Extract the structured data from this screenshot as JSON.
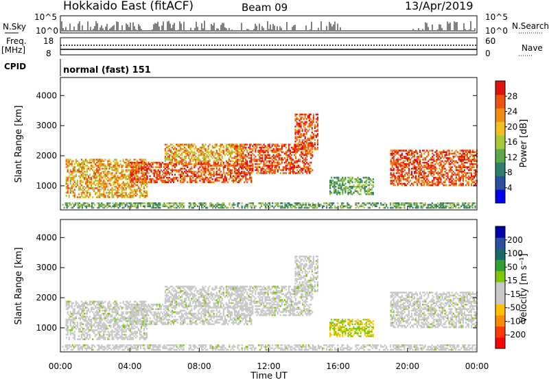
{
  "header": {
    "station": "Hokkaido East (fitACF)",
    "beam": "Beam 09",
    "date": "13/Apr/2019"
  },
  "top_panels": {
    "nsky_label": "N.Sky",
    "nsky_ticks": [
      "10^5",
      "10^0"
    ],
    "nsky_right_ticks": [
      "10^5",
      "10^0"
    ],
    "nsearch_label": "N.Search",
    "freq_label_1": "Freq.",
    "freq_label_2": "[MHz]",
    "freq_ticks": [
      "18",
      "8"
    ],
    "nave_ticks": [
      "60",
      "0"
    ],
    "nave_label": "Nave",
    "cpid_label": "CPID",
    "cpid_value": "normal (fast) 151"
  },
  "colors": {
    "power_scale": [
      "#0000ee",
      "#2a4fa0",
      "#2e7d6e",
      "#5ca84a",
      "#a8c83c",
      "#f0c020",
      "#f08c10",
      "#f05010",
      "#e01010"
    ],
    "velocity_scale": [
      "#ff0000",
      "#ff3c00",
      "#ff8c00",
      "#ffc000",
      "#c8c8c8",
      "#c8c8c8",
      "#7ec800",
      "#30a030",
      "#1a6a6a",
      "#2a4fa0",
      "#0000aa"
    ]
  },
  "chart_data": [
    {
      "type": "heatmap",
      "name": "power",
      "ylabel": "Slant Range [km]",
      "yticks": [
        1000,
        2000,
        3000,
        4000
      ],
      "ylim": [
        200,
        4600
      ],
      "xlim_hours": [
        0,
        24
      ],
      "colorbar_label": "Power [dB]",
      "colorbar_ticks": [
        "28",
        "24",
        "20",
        "16",
        "12",
        "8",
        "4"
      ]
    },
    {
      "type": "heatmap",
      "name": "velocity",
      "ylabel": "Slant Range [km]",
      "yticks": [
        1000,
        2000,
        3000,
        4000
      ],
      "ylim": [
        200,
        4600
      ],
      "xlim_hours": [
        0,
        24
      ],
      "xticks": [
        "00:00",
        "04:00",
        "08:00",
        "12:00",
        "16:00",
        "20:00",
        "00:00"
      ],
      "xlabel": "Time UT",
      "colorbar_label": "Velocity [m s⁻¹]",
      "colorbar_ticks": [
        "200",
        "100",
        "50",
        "15",
        "-15",
        "-50",
        "-100",
        "-200"
      ]
    }
  ]
}
